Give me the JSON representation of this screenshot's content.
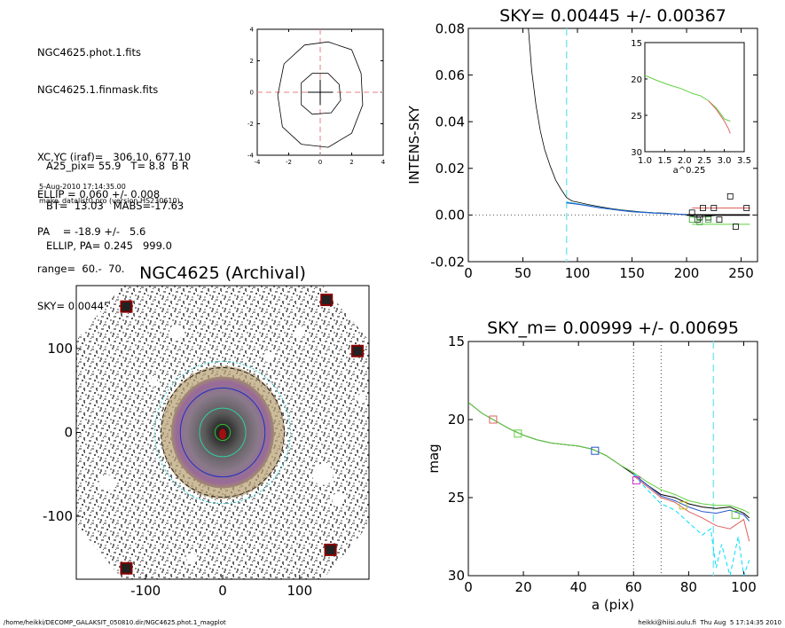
{
  "info_block": {
    "lines": [
      "NGC4625.phot.1.fits",
      "NGC4625.1.finmask.fits",
      "",
      "XC,YC (iraf)=   306.10, 677.10",
      "ELLIP = 0.060 +/- 0.008",
      "PA    = -18.9 +/-   5.6",
      "range=  60.-  70.",
      "SKY= 0.00445 +/- 0.00367"
    ],
    "params": [
      "A25_pix= 55.9   T= 8.8  B R",
      "BT=  13.03   MABS=-17.63",
      "ELLIP, PA= 0.245   999.0"
    ],
    "date": "5-Aug-2010 17:14:35.00",
    "program": "make_datalist0.pro (version HS230610)"
  },
  "footer": {
    "left": "/home/heikki/DECOMP_GALAKSIT_050810.dir/NGC4625.phot.1_magplot",
    "right": "heikki@hiisi.oulu.fi  Thu Aug  5 17:14:35 2010"
  },
  "chart_data": [
    {
      "id": "contour",
      "type": "contour",
      "xlim": [
        -4,
        4
      ],
      "ylim": [
        -4,
        4
      ],
      "xticks": [
        "-4",
        "-2",
        "0",
        "2",
        "4"
      ],
      "yticks": [
        "4",
        "2",
        "0",
        "-2",
        "-4"
      ],
      "contours": [
        [
          [
            -1.2,
            0.6
          ],
          [
            -0.5,
            1.2
          ],
          [
            0.5,
            1.2
          ],
          [
            1.2,
            0.5
          ],
          [
            1.3,
            -0.5
          ],
          [
            0.7,
            -1.3
          ],
          [
            -0.5,
            -1.4
          ],
          [
            -1.2,
            -0.8
          ],
          [
            -1.2,
            0.6
          ]
        ],
        [
          [
            -2.3,
            1.8
          ],
          [
            -1.0,
            3.0
          ],
          [
            0.5,
            3.2
          ],
          [
            2.0,
            2.7
          ],
          [
            2.6,
            1.2
          ],
          [
            2.7,
            -0.8
          ],
          [
            2.0,
            -2.6
          ],
          [
            0.5,
            -3.5
          ],
          [
            -1.2,
            -3.3
          ],
          [
            -2.4,
            -2.2
          ],
          [
            -2.7,
            -0.2
          ],
          [
            -2.3,
            1.8
          ]
        ]
      ],
      "crosshair_color": "#e87f7f"
    },
    {
      "id": "sky-profile",
      "type": "line",
      "title": "SKY= 0.00445 +/- 0.00367",
      "xlabel": "",
      "ylabel": "INTENS-SKY",
      "xlim": [
        0,
        265
      ],
      "ylim": [
        -0.02,
        0.08
      ],
      "xticks": [
        "0",
        "50",
        "100",
        "150",
        "200",
        "250"
      ],
      "yticks": [
        "0.08",
        "0.06",
        "0.04",
        "0.02",
        "0.00",
        "-0.02"
      ],
      "series": [
        {
          "color": "#000000",
          "x": [
            55,
            58,
            62,
            66,
            70,
            75,
            80,
            85,
            90,
            95,
            100,
            110,
            120,
            130,
            140,
            150,
            160,
            170,
            180,
            190,
            200,
            210,
            220,
            230,
            240,
            250,
            255
          ],
          "y": [
            0.08,
            0.062,
            0.047,
            0.036,
            0.028,
            0.021,
            0.015,
            0.011,
            0.0075,
            0.006,
            0.0055,
            0.0045,
            0.0036,
            0.0028,
            0.0022,
            0.0017,
            0.0013,
            0.001,
            0.0008,
            0.0005,
            0.0,
            -0.001,
            -0.0005,
            0.0,
            0.0,
            0.0,
            0.0
          ]
        },
        {
          "color": "#00bcd4",
          "x": [
            90,
            100,
            110,
            120,
            130,
            140,
            150,
            160,
            170,
            180,
            190,
            200,
            210
          ],
          "y": [
            0.0055,
            0.0048,
            0.004,
            0.0032,
            0.0026,
            0.002,
            0.0015,
            0.0012,
            0.0009,
            0.0006,
            0.0004,
            0.0002,
            0.0001
          ]
        },
        {
          "color": "#2255cc",
          "x": [
            90,
            100,
            110,
            120,
            130,
            140,
            150,
            160,
            170,
            180,
            190,
            200
          ],
          "y": [
            0.0052,
            0.0046,
            0.0039,
            0.0031,
            0.0025,
            0.0019,
            0.0014,
            0.0011,
            0.0008,
            0.0006,
            0.0004,
            0.0002
          ]
        },
        {
          "color": "#e06060",
          "x": [
            205,
            258
          ],
          "y": [
            0.003,
            0.003
          ]
        },
        {
          "color": "#60d040",
          "x": [
            205,
            258
          ],
          "y": [
            -0.004,
            -0.004
          ]
        }
      ],
      "markers_black": [
        [
          205,
          0.001
        ],
        [
          210,
          -0.002
        ],
        [
          215,
          0.003
        ],
        [
          220,
          -0.001
        ],
        [
          225,
          0.003
        ],
        [
          230,
          -0.002
        ],
        [
          240,
          0.008
        ],
        [
          245,
          -0.005
        ],
        [
          255,
          0.003
        ],
        [
          212,
          -0.001
        ]
      ],
      "markers_green": [
        [
          205,
          -0.002
        ],
        [
          212,
          -0.003
        ],
        [
          220,
          -0.002
        ]
      ],
      "sky_level": 0.0,
      "vline_x": 90,
      "inset": {
        "xlabel": "a^0.25",
        "xlim": [
          1.0,
          3.5
        ],
        "ylim": [
          15,
          30
        ],
        "xticks": [
          "1.0",
          "1.5",
          "2.0",
          "2.5",
          "3.0",
          "3.5"
        ],
        "yticks": [
          "15",
          "20",
          "25",
          "30"
        ],
        "series": [
          {
            "color": "#60d040",
            "x": [
              1.0,
              1.3,
              1.6,
              1.9,
              2.2,
              2.4,
              2.6,
              2.8,
              3.0,
              3.15
            ],
            "y": [
              19.5,
              20.2,
              20.8,
              21.3,
              22.0,
              22.3,
              23.0,
              24.0,
              25.5,
              25.8
            ]
          },
          {
            "color": "#e06060",
            "x": [
              2.6,
              2.8,
              3.0,
              3.1,
              3.15
            ],
            "y": [
              23.0,
              24.2,
              25.8,
              26.8,
              27.5
            ]
          }
        ]
      }
    },
    {
      "id": "galaxy-image",
      "type": "image",
      "title": "NGC4625 (Archival)",
      "xlim": [
        -190,
        190
      ],
      "ylim": [
        -175,
        175
      ],
      "xticks": [
        "-100",
        "0",
        "100"
      ],
      "yticks": [
        "100",
        "0",
        "-100"
      ],
      "ellipse_radii": [
        10,
        30,
        55,
        80,
        88
      ],
      "ellipse_colors": [
        "#30c030",
        "#30d0a0",
        "#2030c0",
        "#202020",
        "#30c0c0"
      ],
      "stars": [
        [
          -125,
          150
        ],
        [
          135,
          158
        ],
        [
          175,
          97
        ],
        [
          140,
          -140
        ],
        [
          -125,
          -162
        ]
      ]
    },
    {
      "id": "magnitude-profile",
      "type": "line",
      "title": "SKY_m=  0.00999 +/- 0.00695",
      "xlabel": "a (pix)",
      "ylabel": "mag",
      "xlim": [
        0,
        105
      ],
      "ylim": [
        15,
        30
      ],
      "xticks": [
        "0",
        "20",
        "40",
        "60",
        "80",
        "100"
      ],
      "yticks": [
        "15",
        "20",
        "25",
        "30"
      ],
      "vlines_dotted": [
        60,
        70
      ],
      "vline_dashed": 89,
      "series": [
        {
          "color": "#000000",
          "x": [
            0,
            5,
            10,
            15,
            20,
            25,
            30,
            35,
            40,
            45,
            50,
            55,
            60,
            65,
            70,
            75,
            80,
            85,
            90,
            95,
            100,
            102
          ],
          "y": [
            18.9,
            19.6,
            20.1,
            20.6,
            21.0,
            21.3,
            21.5,
            21.6,
            21.7,
            21.9,
            22.3,
            22.9,
            23.5,
            24.2,
            24.8,
            25.0,
            25.4,
            25.6,
            25.7,
            25.6,
            26.0,
            26.3
          ]
        },
        {
          "color": "#60d040",
          "x": [
            0,
            5,
            10,
            15,
            20,
            25,
            30,
            35,
            40,
            45,
            50,
            55,
            60,
            65,
            70,
            75,
            80,
            85,
            90,
            95,
            100,
            102
          ],
          "y": [
            18.9,
            19.6,
            20.1,
            20.6,
            21.0,
            21.3,
            21.5,
            21.6,
            21.7,
            21.9,
            22.3,
            22.9,
            23.4,
            24.0,
            24.5,
            24.8,
            25.2,
            25.4,
            25.5,
            25.5,
            25.8,
            26.0
          ]
        },
        {
          "color": "#e06060",
          "x": [
            60,
            65,
            70,
            75,
            80,
            85,
            90,
            95,
            100,
            102
          ],
          "y": [
            23.6,
            24.3,
            25.0,
            25.3,
            25.9,
            26.3,
            26.8,
            27.0,
            26.4,
            27.8
          ]
        },
        {
          "color": "#2255cc",
          "x": [
            60,
            65,
            70,
            75,
            80,
            85,
            90,
            95,
            100,
            102
          ],
          "y": [
            23.5,
            24.2,
            24.9,
            25.2,
            25.6,
            25.9,
            26.0,
            25.8,
            26.1,
            26.5
          ]
        },
        {
          "color": "#00e0ff",
          "dashed": true,
          "x": [
            60,
            65,
            70,
            75,
            80,
            85,
            88,
            90,
            92,
            95,
            98,
            100,
            102
          ],
          "y": [
            23.5,
            24.5,
            25.4,
            25.8,
            26.6,
            27.4,
            27.0,
            29.5,
            28.0,
            30.0,
            27.5,
            30.0,
            29.0
          ]
        }
      ],
      "markers": [
        {
          "x": 9,
          "y": 20.0,
          "color": "#e06060"
        },
        {
          "x": 18,
          "y": 20.9,
          "color": "#60d040"
        },
        {
          "x": 46,
          "y": 22.0,
          "color": "#2255cc"
        },
        {
          "x": 61,
          "y": 23.9,
          "color": "#cc30cc"
        },
        {
          "x": 78,
          "y": 25.5,
          "color": "#c0c020"
        },
        {
          "x": 97,
          "y": 26.1,
          "color": "#60d040"
        }
      ]
    }
  ]
}
